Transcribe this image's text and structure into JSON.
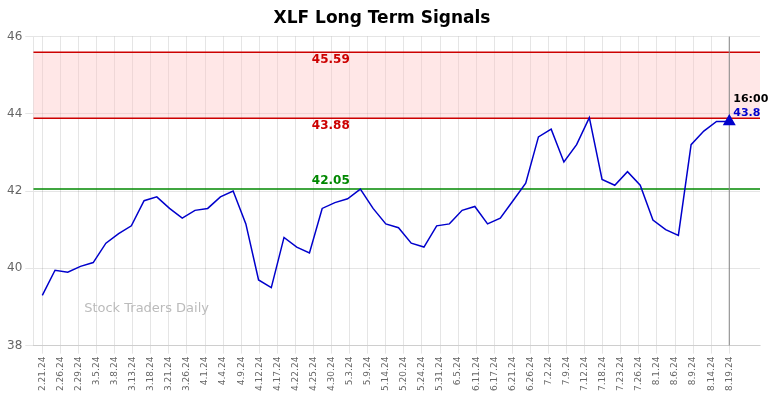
{
  "chart_data": {
    "type": "line",
    "title": "XLF Long Term Signals",
    "watermark": "Stock Traders Daily",
    "xlim": [
      -0.5,
      39.7
    ],
    "xticks": [
      {
        "value": 0,
        "label": "2.21.24"
      },
      {
        "value": 1,
        "label": "2.26.24"
      },
      {
        "value": 2,
        "label": "2.29.24"
      },
      {
        "value": 3,
        "label": "3.5.24"
      },
      {
        "value": 4,
        "label": "3.8.24"
      },
      {
        "value": 5,
        "label": "3.13.24"
      },
      {
        "value": 6,
        "label": "3.18.24"
      },
      {
        "value": 7,
        "label": "3.21.24"
      },
      {
        "value": 8,
        "label": "3.26.24"
      },
      {
        "value": 9,
        "label": "4.1.24"
      },
      {
        "value": 10,
        "label": "4.4.24"
      },
      {
        "value": 11,
        "label": "4.9.24"
      },
      {
        "value": 12,
        "label": "4.12.24"
      },
      {
        "value": 13,
        "label": "4.17.24"
      },
      {
        "value": 14,
        "label": "4.22.24"
      },
      {
        "value": 15,
        "label": "4.25.24"
      },
      {
        "value": 16,
        "label": "4.30.24"
      },
      {
        "value": 17,
        "label": "5.3.24"
      },
      {
        "value": 18,
        "label": "5.9.24"
      },
      {
        "value": 19,
        "label": "5.14.24"
      },
      {
        "value": 20,
        "label": "5.20.24"
      },
      {
        "value": 21,
        "label": "5.24.24"
      },
      {
        "value": 22,
        "label": "5.31.24"
      },
      {
        "value": 23,
        "label": "6.5.24"
      },
      {
        "value": 24,
        "label": "6.11.24"
      },
      {
        "value": 25,
        "label": "6.17.24"
      },
      {
        "value": 26,
        "label": "6.21.24"
      },
      {
        "value": 27,
        "label": "6.26.24"
      },
      {
        "value": 28,
        "label": "7.2.24"
      },
      {
        "value": 29,
        "label": "7.9.24"
      },
      {
        "value": 30,
        "label": "7.12.24"
      },
      {
        "value": 31,
        "label": "7.18.24"
      },
      {
        "value": 32,
        "label": "7.23.24"
      },
      {
        "value": 33,
        "label": "7.26.24"
      },
      {
        "value": 34,
        "label": "8.1.24"
      },
      {
        "value": 35,
        "label": "8.6.24"
      },
      {
        "value": 36,
        "label": "8.9.24"
      },
      {
        "value": 37,
        "label": "8.14.24"
      },
      {
        "value": 38,
        "label": "8.19.24"
      }
    ],
    "values": [
      39.3,
      39.95,
      39.9,
      40.05,
      40.15,
      40.65,
      40.9,
      41.1,
      41.75,
      41.85,
      41.55,
      41.3,
      41.5,
      41.55,
      41.85,
      42.0,
      41.15,
      39.7,
      39.5,
      40.8,
      40.55,
      40.4,
      41.55,
      41.7,
      41.8,
      42.05,
      41.55,
      41.15,
      41.05,
      40.65,
      40.55,
      41.1,
      41.15,
      41.5,
      41.6,
      41.15,
      41.3,
      41.75,
      42.2,
      43.4,
      43.6,
      42.75,
      43.2,
      43.9,
      42.3,
      42.15,
      42.5,
      42.15,
      41.25,
      41.0,
      40.85,
      43.2,
      43.55,
      43.8,
      43.8
    ],
    "color": "#0000cc",
    "ylim": [
      38,
      46
    ],
    "yticks": [
      38,
      40,
      42,
      44,
      46
    ],
    "grid": true,
    "hlines": [
      {
        "value": 42.05,
        "label": "42.05",
        "color": "#008800"
      },
      {
        "value": 43.88,
        "label": "43.88",
        "color": "#cc0000"
      },
      {
        "value": 45.59,
        "label": "45.59",
        "color": "#cc0000"
      }
    ],
    "band": {
      "from": 43.88,
      "to": 45.59,
      "color": "#ffbbbb"
    },
    "last_point": {
      "time": "16:00",
      "price_label": "43.8",
      "marker": "triangle"
    }
  }
}
